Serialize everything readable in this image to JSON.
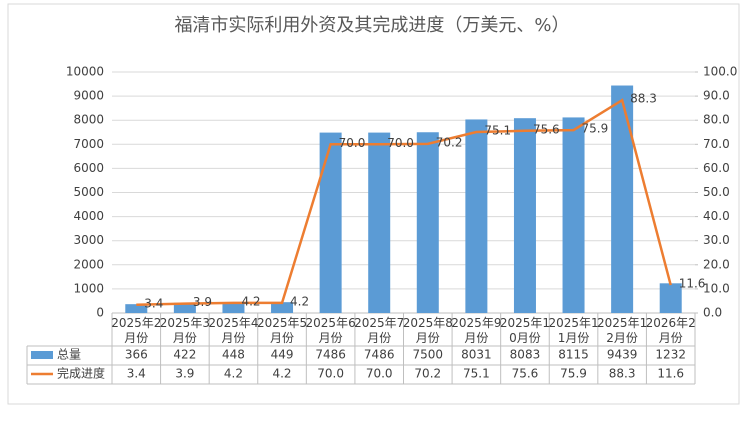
{
  "chart_data": {
    "type": "bar-line",
    "title": "福清市实际利用外资及其完成进度（万美元、%）",
    "categories": [
      "2025年2月份",
      "2025年3月份",
      "2025年4月份",
      "2025年5月份",
      "2025年6月份",
      "2025年7月份",
      "2025年8月份",
      "2025年9月份",
      "2025年10月份",
      "2025年11月份",
      "2025年12月份",
      "2026年2月份"
    ],
    "series": [
      {
        "name": "总量",
        "type": "bar",
        "color": "#5b9bd5",
        "values": [
          366,
          422,
          448,
          449,
          7486,
          7486,
          7500,
          8031,
          8083,
          8115,
          9439,
          1232
        ]
      },
      {
        "name": "完成进度",
        "type": "line",
        "axis": "y2",
        "color": "#ed7d31",
        "values": [
          3.4,
          3.9,
          4.2,
          4.2,
          70.0,
          70.0,
          70.2,
          75.1,
          75.6,
          75.9,
          88.3,
          11.6
        ],
        "value_labels": [
          "3.4",
          "3.9",
          "4.2",
          "4.2",
          "70.0",
          "70.0",
          "70.2",
          "75.1",
          "75.6",
          "75.9",
          "88.3",
          "11.6"
        ]
      }
    ],
    "ylim": [
      0,
      10000
    ],
    "yticks": [
      0,
      1000,
      2000,
      3000,
      4000,
      5000,
      6000,
      7000,
      8000,
      9000,
      10000
    ],
    "y2lim": [
      0,
      100
    ],
    "y2ticks": [
      {
        "value": 0,
        "label": "0.0"
      },
      {
        "value": 10,
        "label": "10.0"
      },
      {
        "value": 20,
        "label": "20.0"
      },
      {
        "value": 30,
        "label": "30.0"
      },
      {
        "value": 40,
        "label": "40.0"
      },
      {
        "value": 50,
        "label": "50.0"
      },
      {
        "value": 60,
        "label": "60.0"
      },
      {
        "value": 70,
        "label": "70.0"
      },
      {
        "value": 80,
        "label": "80.0"
      },
      {
        "value": 90,
        "label": "90.0"
      },
      {
        "value": 100,
        "label": "100.0"
      }
    ],
    "grid": true,
    "data_table": true
  }
}
